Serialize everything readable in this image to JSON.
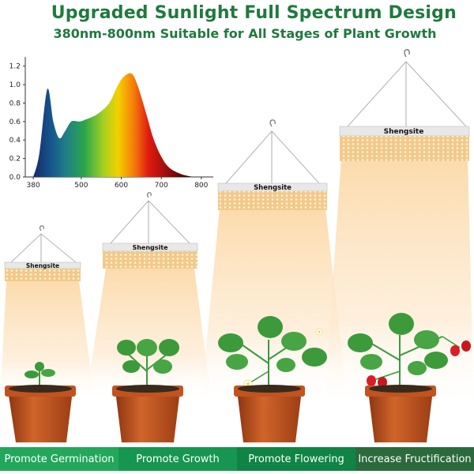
{
  "header": {
    "title": "Upgraded Sunlight Full Spectrum Design",
    "subtitle": "380nm-800nm Suitable for All Stages of Plant Growth"
  },
  "chart_data": {
    "type": "area",
    "x_ticks": [
      "380",
      "500",
      "600",
      "700",
      "800"
    ],
    "y_ticks": [
      "0.0",
      "0.2",
      "0.4",
      "0.6",
      "0.8",
      "1.0",
      "1.2"
    ],
    "xlim": [
      360,
      830
    ],
    "ylim": [
      0,
      1.3
    ],
    "grid": false,
    "x": [
      380,
      395,
      415,
      430,
      445,
      460,
      475,
      495,
      510,
      540,
      570,
      590,
      605,
      625,
      640,
      660,
      680,
      700,
      720,
      750,
      780
    ],
    "values": [
      0.0,
      0.25,
      0.95,
      0.6,
      0.42,
      0.5,
      0.6,
      0.6,
      0.62,
      0.68,
      0.8,
      0.98,
      1.08,
      1.12,
      1.0,
      0.72,
      0.42,
      0.22,
      0.1,
      0.03,
      0.0
    ]
  },
  "lamps": [
    {
      "brand": "Shengsite"
    },
    {
      "brand": "Shengsite"
    },
    {
      "brand": "Shengsite"
    },
    {
      "brand": "Shengsite"
    }
  ],
  "stages": [
    {
      "label": "Promote Germination",
      "color": "#22a75b"
    },
    {
      "label": "Promote Growth",
      "color": "#169650"
    },
    {
      "label": "Promote Flowering",
      "color": "#0f8444"
    },
    {
      "label": "Increase Fructification",
      "color": "#2b6a3c"
    }
  ],
  "colors": {
    "title_green": "#1f7a3d",
    "pot": "#c2531f",
    "soil": "#3a2a1c",
    "leaf": "#3c9a3a",
    "light_beam": "#fbe2bd",
    "berry": "#d81e27"
  }
}
